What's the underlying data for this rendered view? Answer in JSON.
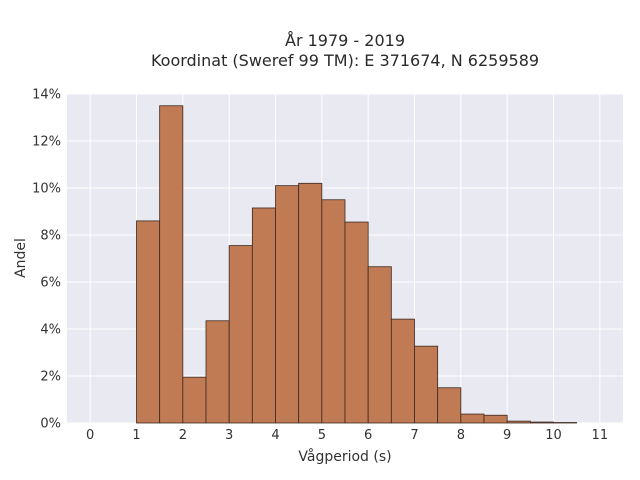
{
  "chart_data": {
    "type": "bar",
    "title_line1": "År 1979 - 2019",
    "title_line2": "Koordinat (Sweref 99 TM): E 371674, N 6259589",
    "xlabel": "Vågperiod (s)",
    "ylabel": "Andel",
    "xlim": [
      -0.5,
      11.5
    ],
    "ylim": [
      0,
      14
    ],
    "x_ticks": [
      0,
      1,
      2,
      3,
      4,
      5,
      6,
      7,
      8,
      9,
      10,
      11
    ],
    "x_tick_labels": [
      "0",
      "1",
      "2",
      "3",
      "4",
      "5",
      "6",
      "7",
      "8",
      "9",
      "10",
      "11"
    ],
    "y_ticks": [
      0,
      2,
      4,
      6,
      8,
      10,
      12,
      14
    ],
    "y_tick_labels": [
      "0%",
      "2%",
      "4%",
      "6%",
      "8%",
      "10%",
      "12%",
      "14%"
    ],
    "bin_width": 0.5,
    "bin_starts": [
      1.0,
      1.5,
      2.0,
      2.5,
      3.0,
      3.5,
      4.0,
      4.5,
      5.0,
      5.5,
      6.0,
      6.5,
      7.0,
      7.5,
      8.0,
      8.5,
      9.0,
      9.5,
      10.0
    ],
    "values": [
      8.6,
      13.5,
      1.95,
      4.35,
      7.55,
      9.15,
      10.1,
      10.2,
      9.5,
      8.55,
      6.65,
      4.42,
      3.27,
      1.5,
      0.38,
      0.33,
      0.08,
      0.04,
      0.02
    ],
    "grid": true,
    "colors": {
      "bar_fill": "#c07a54",
      "bar_edge": "#3b2a20",
      "plot_bg": "#e9e9f1",
      "grid": "#ffffff"
    }
  }
}
